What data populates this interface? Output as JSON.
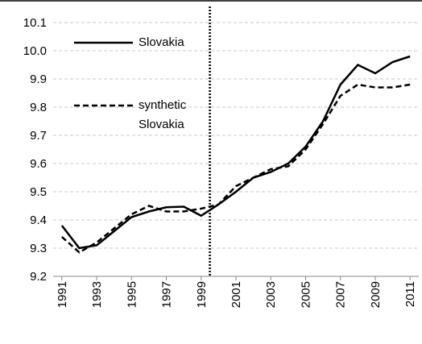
{
  "chart_data": {
    "type": "line",
    "x": [
      1991,
      1992,
      1993,
      1994,
      1995,
      1996,
      1997,
      1998,
      1999,
      2000,
      2001,
      2002,
      2003,
      2004,
      2005,
      2006,
      2007,
      2008,
      2009,
      2010,
      2011
    ],
    "xlim": [
      1990.5,
      2011.5
    ],
    "xticks": [
      1991,
      1993,
      1995,
      1997,
      1999,
      2001,
      2003,
      2005,
      2007,
      2009,
      2011
    ],
    "ylim": [
      9.2,
      10.1
    ],
    "yticks": [
      9.2,
      9.3,
      9.4,
      9.5,
      9.6,
      9.7,
      9.8,
      9.9,
      {
        "value": 10,
        "label": "10.0"
      },
      10.1
    ],
    "grid": true,
    "vline_x": 1999.5,
    "series": [
      {
        "name": "Slovakia",
        "color": "#000000",
        "dash": "solid",
        "values": [
          9.38,
          9.3,
          9.31,
          9.36,
          9.41,
          9.43,
          9.445,
          9.447,
          9.415,
          9.455,
          9.5,
          9.55,
          9.57,
          9.6,
          9.66,
          9.75,
          9.88,
          9.95,
          9.92,
          9.96,
          9.98
        ]
      },
      {
        "name": "synthetic Slovakia",
        "color": "#000000",
        "dash": "dashed",
        "values": [
          9.34,
          9.285,
          9.32,
          9.37,
          9.42,
          9.45,
          9.43,
          9.43,
          9.44,
          9.455,
          9.52,
          9.55,
          9.58,
          9.59,
          9.65,
          9.74,
          9.84,
          9.88,
          9.87,
          9.87,
          9.88
        ]
      }
    ]
  }
}
